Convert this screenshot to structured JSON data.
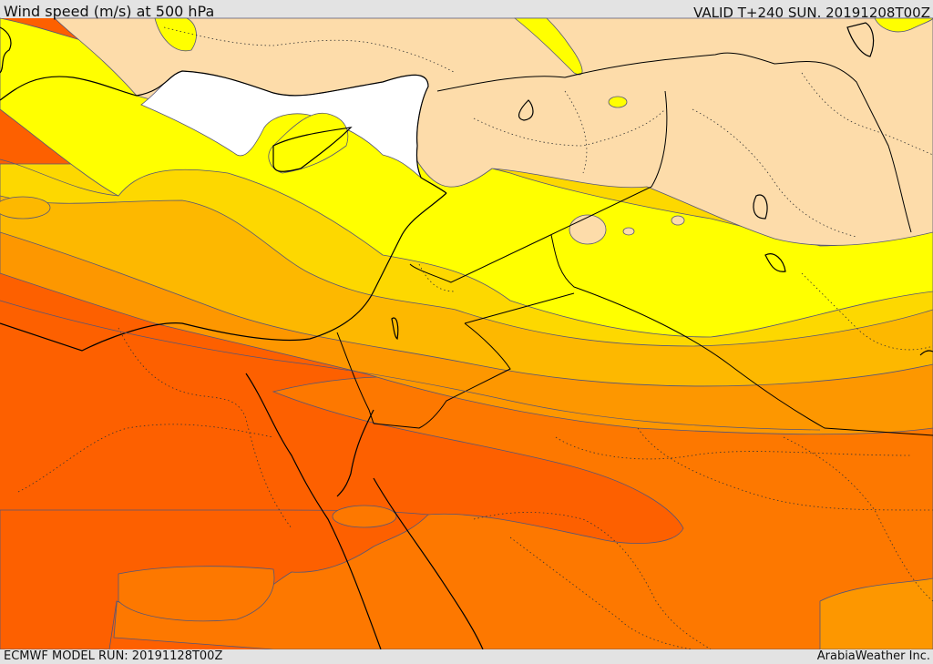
{
  "header": {
    "title": "Wind speed (m/s) at 500 hPa",
    "valid": "VALID T+240 SUN. 20191208T00Z"
  },
  "footer": {
    "model_run": "ECMWF MODEL RUN: 20191128T00Z",
    "credit": "ArabiaWeather Inc."
  },
  "palette": {
    "white": "#ffffff",
    "tan": "#fddcaa",
    "yellow": "#ffff00",
    "light_orange": "#fdd800",
    "orange1": "#fdb800",
    "orange2": "#fd9700",
    "orange3": "#fd7800",
    "red_orange": "#fd6000",
    "contour": "#555577",
    "coast": "#000000"
  }
}
